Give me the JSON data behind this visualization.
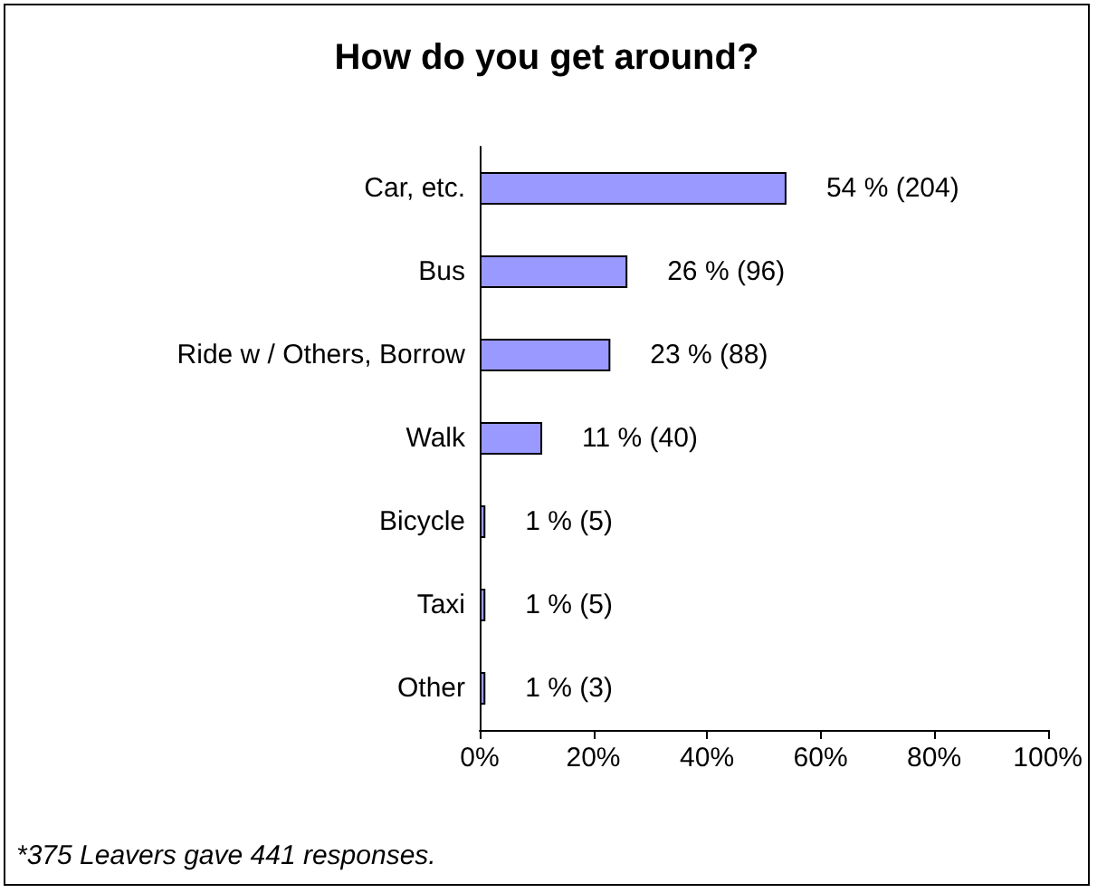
{
  "chart_data": {
    "type": "bar",
    "orientation": "horizontal",
    "title": "How do you get around?",
    "categories": [
      "Car, etc.",
      "Bus",
      "Ride w / Others, Borrow",
      "Walk",
      "Bicycle",
      "Taxi",
      "Other"
    ],
    "values": [
      54,
      26,
      23,
      11,
      1,
      1,
      1
    ],
    "value_labels": [
      "54 % (204)",
      "26 % (96)",
      "23 % (88)",
      "11 % (40)",
      "1 % (5)",
      "1 % (5)",
      "1 % (3)"
    ],
    "color": "#9999ff",
    "xlim": [
      0,
      100
    ],
    "xticks": [
      {
        "value": 0,
        "label": "0%"
      },
      {
        "value": 20,
        "label": "20%"
      },
      {
        "value": 40,
        "label": "40%"
      },
      {
        "value": 60,
        "label": "60%"
      },
      {
        "value": 80,
        "label": "80%"
      },
      {
        "value": 100,
        "label": "100%"
      }
    ],
    "annotations": [
      "*375 Leavers gave 441 responses."
    ]
  }
}
